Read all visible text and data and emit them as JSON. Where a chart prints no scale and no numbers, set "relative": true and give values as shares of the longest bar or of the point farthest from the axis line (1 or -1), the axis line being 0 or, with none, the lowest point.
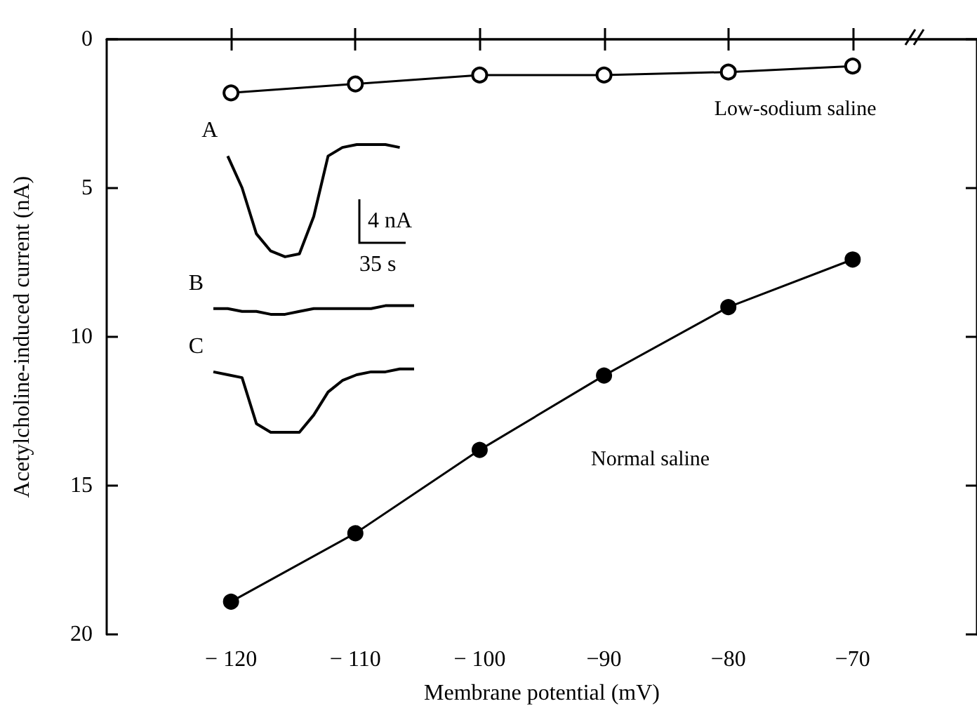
{
  "chart_data": [
    {
      "type": "line",
      "xlabel": "Membrane potential (mV)",
      "ylabel": "Acetylcholine-induced current (nA)",
      "x": [
        -120,
        -110,
        -100,
        -90,
        -80,
        -70
      ],
      "series": [
        {
          "name": "Low-sodium saline",
          "color": "#000000",
          "marker": "open-circle",
          "values": [
            1.8,
            1.5,
            1.2,
            1.2,
            1.1,
            0.9
          ]
        },
        {
          "name": "Normal saline",
          "color": "#000000",
          "marker": "circle",
          "values": [
            18.9,
            16.6,
            13.8,
            11.3,
            9.0,
            7.4
          ]
        }
      ],
      "xlim": [
        -130,
        -60
      ],
      "xticks": [
        {
          "value": -120,
          "label": "− 120"
        },
        {
          "value": -110,
          "label": "− 110"
        },
        {
          "value": -100,
          "label": "− 100"
        },
        {
          "value": -90,
          "label": "−90"
        },
        {
          "value": -80,
          "label": "−80"
        },
        {
          "value": -70,
          "label": "−70"
        }
      ],
      "ylim": [
        20,
        0
      ],
      "yticks": [
        0,
        5,
        10,
        15,
        20
      ],
      "grid": false,
      "legend": false
    },
    {
      "type": "line",
      "relative": true,
      "marker": "none",
      "legend": false,
      "categories": [
        null,
        null,
        null,
        null,
        null,
        null,
        null,
        null,
        null,
        null,
        null,
        null,
        null,
        null,
        null
      ],
      "series": [
        {
          "name": "A",
          "color": "#000000",
          "values": [
            null,
            0.96,
            0.85,
            0.69,
            0.63,
            0.61,
            0.62,
            0.75,
            0.96,
            0.99,
            1.0,
            1.0,
            1.0,
            0.99,
            null
          ]
        },
        {
          "name": "B",
          "color": "#000000",
          "values": [
            0.43,
            0.43,
            0.42,
            0.42,
            0.41,
            0.41,
            0.42,
            0.43,
            0.43,
            0.43,
            0.43,
            0.43,
            0.44,
            0.44,
            0.44
          ]
        },
        {
          "name": "C",
          "color": "#000000",
          "values": [
            0.21,
            0.2,
            0.19,
            0.03,
            0.0,
            0.0,
            0.0,
            0.06,
            0.14,
            0.18,
            0.2,
            0.21,
            0.21,
            0.22,
            0.22
          ]
        }
      ],
      "annotations": [
        "4 nA",
        "35 s"
      ]
    }
  ]
}
